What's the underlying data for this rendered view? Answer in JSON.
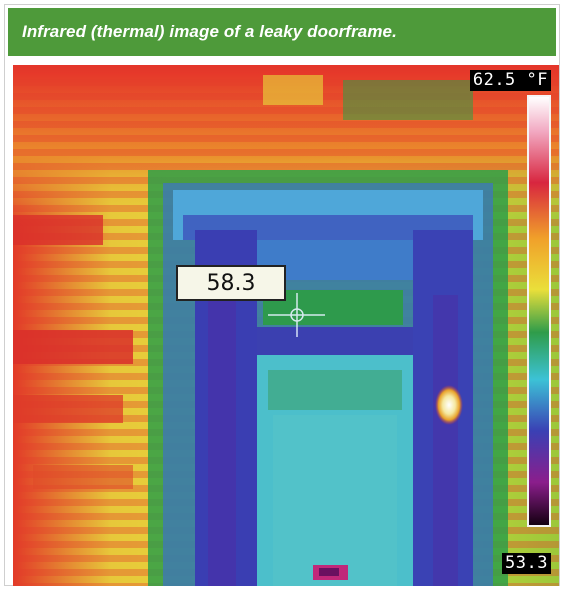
{
  "caption": "Infrared (thermal) image of a leaky doorframe.",
  "thermal": {
    "max_temp_label": "62.5 °F",
    "min_temp_label": "53.3",
    "spot_reading": "58.3",
    "palette": [
      "#1a0016",
      "#5e1a7a",
      "#3b3fb5",
      "#2f7ed6",
      "#39c4d8",
      "#2aa85a",
      "#7cc23a",
      "#e6e23a",
      "#f2a52a",
      "#e33a2a",
      "#d6285e",
      "#f7b0c8",
      "#ffffff"
    ]
  },
  "colors": {
    "caption_bg": "#4e9a3a",
    "caption_text": "#ffffff"
  }
}
